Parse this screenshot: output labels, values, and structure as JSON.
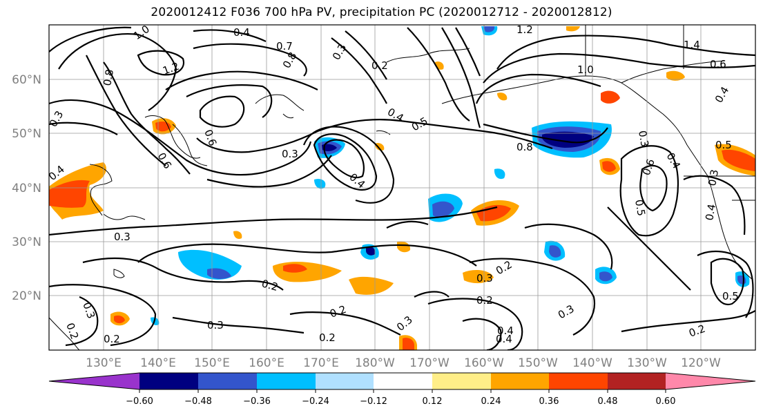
{
  "title": "2020012412 F036 700 hPa PV, precipitation PC (2020012712 - 2020012812)",
  "lat_labels": [
    "60°N",
    "50°N",
    "40°N",
    "30°N",
    "20°N"
  ],
  "lon_labels": [
    "130°E",
    "140°E",
    "150°E",
    "160°E",
    "170°E",
    "180°W",
    "170°W",
    "160°W",
    "150°W",
    "140°W",
    "130°W",
    "120°W"
  ],
  "colorbar": {
    "ticks": [
      "−0.60",
      "−0.48",
      "−0.36",
      "−0.24",
      "−0.12",
      "0.12",
      "0.24",
      "0.36",
      "0.48",
      "0.60"
    ],
    "colors": [
      "#9933cc",
      "#000080",
      "#3355cc",
      "#00bfff",
      "#b0e0ff",
      "#ffffff",
      "#ffee88",
      "#ffa500",
      "#ff4500",
      "#b22222",
      "#ff88aa"
    ]
  },
  "contour_labels": [
    "1.0",
    "0.4",
    "1.2",
    "0.7",
    "0.8",
    "0.2",
    "0.3",
    "0.4",
    "0.5",
    "0.8",
    "1.0",
    "1.4",
    "0.6",
    "0.8",
    "0.6",
    "0.3",
    "0.4",
    "0.3",
    "0.4",
    "0.3",
    "0.5",
    "0.5",
    "0.3",
    "0.4",
    "0.2",
    "0.3",
    "0.2",
    "0.3",
    "0.2",
    "0.3",
    "0.2",
    "0.5",
    "0.2",
    "0.3",
    "0.2",
    "0.2",
    "0.4",
    "0.4",
    "0.3",
    "0.2",
    "0.6",
    "1.2",
    "0.3",
    "0.4",
    "0.6",
    "0.4"
  ]
}
